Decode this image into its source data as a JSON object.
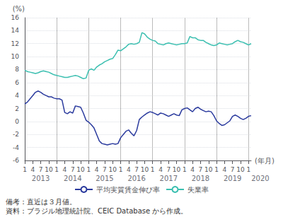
{
  "chart_data": {
    "type": "line",
    "xlabel": "(年月)",
    "ylabel": "(%)",
    "categories": [
      "1",
      null,
      null,
      "4",
      null,
      null,
      "7",
      null,
      null,
      "10",
      null,
      null,
      "1",
      null,
      null,
      "4",
      null,
      null,
      "7",
      null,
      null,
      "10",
      null,
      null,
      "1",
      null,
      null,
      "4",
      null,
      null,
      "7",
      null,
      null,
      "10",
      null,
      null,
      "1",
      null,
      null,
      "4",
      null,
      null,
      "7",
      null,
      null,
      "10",
      null,
      null,
      "1",
      null,
      null,
      "4",
      null,
      null,
      "7",
      null,
      null,
      "10",
      null,
      null,
      "1",
      null,
      null,
      "4",
      null,
      null,
      "7",
      null,
      null,
      "10",
      null,
      null,
      "1",
      null,
      null,
      "4",
      null,
      null,
      "7",
      null,
      null,
      "10",
      null,
      null,
      "1",
      null
    ],
    "annotations": [
      "2013",
      "2014",
      "2015",
      "2016",
      "2017",
      "2018",
      "2019",
      "2020"
    ],
    "notes": [
      "備考：直近は３月値。",
      "資料：ブラジル地理統計院、CEIC Database から作成。"
    ],
    "series": [
      {
        "name": "平均実質賃金伸び率",
        "color": "#2b3b9e",
        "values": [
          2.7,
          3.0,
          3.5,
          4.0,
          4.5,
          4.7,
          4.5,
          4.2,
          4.0,
          3.8,
          3.8,
          3.6,
          3.5,
          3.5,
          3.3,
          1.4,
          1.2,
          1.5,
          1.3,
          2.4,
          2.3,
          2.2,
          1.3,
          0.2,
          -0.1,
          -0.5,
          -1.0,
          -2.0,
          -3.0,
          -3.4,
          -3.5,
          -3.6,
          -3.5,
          -3.4,
          -3.5,
          -3.4,
          -2.5,
          -2.0,
          -1.5,
          -1.3,
          -1.8,
          -2.2,
          -1.4,
          0.3,
          0.7,
          1.0,
          1.3,
          1.5,
          1.4,
          1.2,
          1.0,
          1.3,
          1.2,
          1.0,
          0.8,
          1.0,
          1.2,
          1.0,
          0.9,
          1.8,
          2.0,
          2.1,
          1.8,
          1.5,
          2.0,
          2.2,
          1.9,
          1.7,
          1.5,
          1.6,
          1.5,
          0.9,
          0.1,
          -0.3,
          -0.6,
          -0.5,
          -0.2,
          0.1,
          0.8,
          1.0,
          0.8,
          0.5,
          0.3,
          0.5,
          0.8,
          0.9
        ]
      },
      {
        "name": "失業率",
        "color": "#3bbfb0",
        "values": [
          7.9,
          7.7,
          7.6,
          7.5,
          7.4,
          7.5,
          7.7,
          7.8,
          7.7,
          7.6,
          7.4,
          7.2,
          7.1,
          7.0,
          6.9,
          6.8,
          6.8,
          6.9,
          7.0,
          7.1,
          7.0,
          6.8,
          6.6,
          6.7,
          7.9,
          8.1,
          7.9,
          8.4,
          8.7,
          8.9,
          9.2,
          9.4,
          9.6,
          9.7,
          10.3,
          11.0,
          10.9,
          11.2,
          11.5,
          11.9,
          12.0,
          11.9,
          12.0,
          12.2,
          13.7,
          13.5,
          13.0,
          12.7,
          12.5,
          12.4,
          12.0,
          11.9,
          11.8,
          12.0,
          12.1,
          12.0,
          11.9,
          11.8,
          11.9,
          12.0,
          12.0,
          12.1,
          13.1,
          12.9,
          12.9,
          12.6,
          12.5,
          12.5,
          12.2,
          12.0,
          11.8,
          11.7,
          11.8,
          12.1,
          12.0,
          11.9,
          11.8,
          11.9,
          12.0,
          12.3,
          12.5,
          12.3,
          12.2,
          12.0,
          11.8,
          12.0
        ]
      }
    ],
    "ylim": [
      -6,
      16
    ],
    "yticks": [
      -6,
      -4,
      -2,
      0,
      2,
      4,
      6,
      8,
      10,
      12,
      14,
      16
    ],
    "grid": true,
    "legend": "bottom"
  }
}
